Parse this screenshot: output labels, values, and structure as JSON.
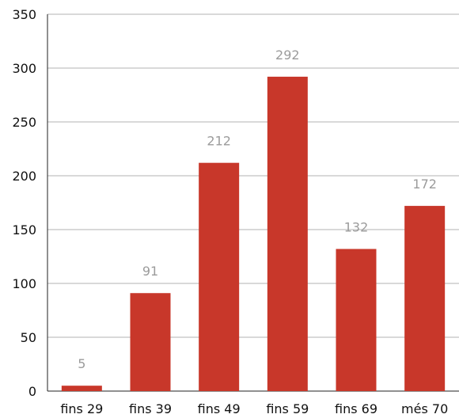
{
  "chart_data": {
    "type": "bar",
    "categories": [
      "fins 29",
      "fins 39",
      "fins 49",
      "fins 59",
      "fins 69",
      "més 70"
    ],
    "values": [
      5,
      91,
      212,
      292,
      132,
      172
    ],
    "data_labels": [
      "5",
      "91",
      "212",
      "292",
      "132",
      "172"
    ],
    "title": "",
    "xlabel": "",
    "ylabel": "",
    "ylim": [
      0,
      350
    ],
    "yticks": [
      "0",
      "50",
      "100",
      "150",
      "200",
      "250",
      "300",
      "350"
    ],
    "grid": "horizontal",
    "bar_color": "#c8372a",
    "label_color": "#9b9b9b"
  }
}
